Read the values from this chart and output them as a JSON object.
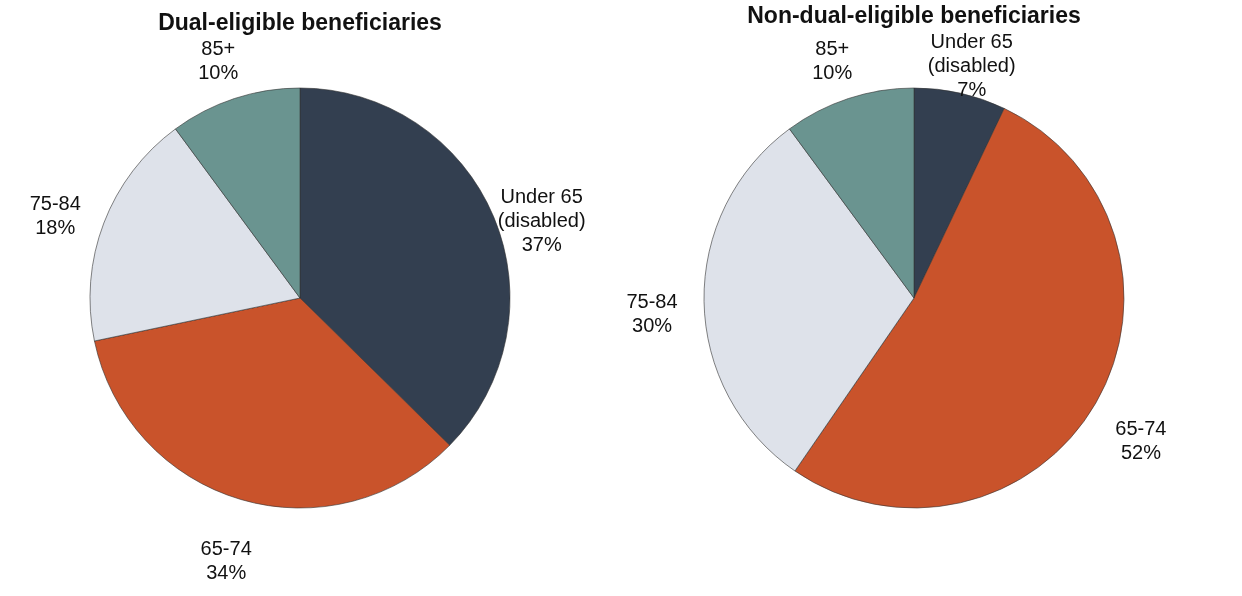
{
  "chart_data": [
    {
      "type": "pie",
      "title": "Dual-eligible beneficiaries",
      "categories": [
        "Under 65 (disabled)",
        "65-74",
        "75-84",
        "85+"
      ],
      "values": [
        37,
        34,
        18,
        10
      ],
      "colors": [
        "#333f50",
        "#c9532b",
        "#dee2ea",
        "#6a9490"
      ],
      "value_labels": [
        "37%",
        "34%",
        "18%",
        "10%"
      ],
      "legend": false
    },
    {
      "type": "pie",
      "title": "Non-dual-eligible beneficiaries",
      "categories": [
        "Under 65 (disabled)",
        "65-74",
        "75-84",
        "85+"
      ],
      "values": [
        7,
        52,
        30,
        10
      ],
      "colors": [
        "#333f50",
        "#c9532b",
        "#dee2ea",
        "#6a9490"
      ],
      "value_labels": [
        "7%",
        "52%",
        "30%",
        "10%"
      ],
      "legend": false
    }
  ]
}
